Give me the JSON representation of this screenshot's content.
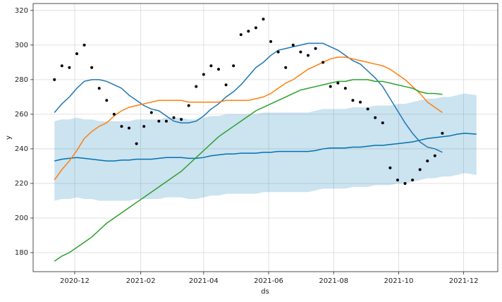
{
  "chart_data": {
    "type": "line",
    "xlabel": "ds",
    "ylabel": "y",
    "grid": true,
    "ylim": [
      169,
      324
    ],
    "yticks": [
      180,
      200,
      220,
      240,
      260,
      280,
      300,
      320
    ],
    "xlim": [
      "2020-10-23",
      "2022-01-02"
    ],
    "xticks": [
      {
        "value": "2020-12-01",
        "label": "2020-12"
      },
      {
        "value": "2021-02-01",
        "label": "2021-02"
      },
      {
        "value": "2021-04-01",
        "label": "2021-04"
      },
      {
        "value": "2021-06-01",
        "label": "2021-06"
      },
      {
        "value": "2021-08-01",
        "label": "2021-08"
      },
      {
        "value": "2021-10-01",
        "label": "2021-10"
      },
      {
        "value": "2021-12-01",
        "label": "2021-12"
      }
    ],
    "x": [
      "2020-11-12",
      "2020-11-19",
      "2020-11-26",
      "2020-12-03",
      "2020-12-10",
      "2020-12-17",
      "2020-12-24",
      "2020-12-31",
      "2021-01-07",
      "2021-01-14",
      "2021-01-21",
      "2021-01-28",
      "2021-02-04",
      "2021-02-11",
      "2021-02-18",
      "2021-02-25",
      "2021-03-04",
      "2021-03-11",
      "2021-03-18",
      "2021-03-25",
      "2021-04-01",
      "2021-04-08",
      "2021-04-15",
      "2021-04-22",
      "2021-04-29",
      "2021-05-06",
      "2021-05-13",
      "2021-05-20",
      "2021-05-27",
      "2021-06-03",
      "2021-06-10",
      "2021-06-17",
      "2021-06-24",
      "2021-07-01",
      "2021-07-08",
      "2021-07-15",
      "2021-07-22",
      "2021-07-29",
      "2021-08-05",
      "2021-08-12",
      "2021-08-19",
      "2021-08-26",
      "2021-09-02",
      "2021-09-09",
      "2021-09-16",
      "2021-09-23",
      "2021-09-30",
      "2021-10-07",
      "2021-10-14",
      "2021-10-21",
      "2021-10-28",
      "2021-11-04",
      "2021-11-11",
      "2021-11-18",
      "2021-11-25",
      "2021-12-02",
      "2021-12-13"
    ],
    "series": [
      {
        "kind": "band",
        "color": "#0072B2",
        "opacity": 0.2,
        "upper": [
          256,
          257,
          257,
          258,
          257,
          257,
          256,
          256,
          256,
          256,
          256,
          257,
          257,
          257,
          257,
          258,
          258,
          258,
          257,
          257,
          258,
          259,
          259,
          260,
          260,
          260,
          260,
          260,
          261,
          261,
          261,
          261,
          261,
          261,
          261,
          262,
          263,
          263,
          263,
          263,
          264,
          264,
          264,
          265,
          265,
          265,
          266,
          266,
          267,
          268,
          269,
          269,
          270,
          270,
          271,
          272,
          271
        ],
        "lower": [
          210,
          211,
          211,
          212,
          211,
          211,
          210,
          210,
          210,
          210,
          210,
          211,
          211,
          211,
          211,
          212,
          212,
          212,
          211,
          211,
          212,
          213,
          213,
          214,
          214,
          214,
          214,
          214,
          215,
          215,
          215,
          215,
          215,
          215,
          215,
          216,
          217,
          217,
          217,
          217,
          218,
          218,
          218,
          219,
          219,
          219,
          220,
          220,
          221,
          222,
          223,
          223,
          224,
          224,
          225,
          226,
          225
        ]
      },
      {
        "kind": "line",
        "color": "#0072B2",
        "values": [
          233,
          234,
          234.5,
          235,
          234.5,
          234,
          233.5,
          233,
          233,
          233.5,
          233.5,
          234,
          234,
          234,
          234.5,
          235,
          235,
          235,
          234.5,
          234.5,
          235,
          236,
          236.5,
          237,
          237,
          237.5,
          237.5,
          237.5,
          238,
          238,
          238.5,
          238.5,
          238.5,
          238.5,
          238.5,
          239,
          240,
          240.5,
          240.5,
          240.5,
          241,
          241,
          241.5,
          242,
          242,
          242.5,
          243,
          243.5,
          244,
          245,
          246,
          246.5,
          247,
          247.5,
          248.5,
          249,
          248.5
        ]
      },
      {
        "kind": "line",
        "color": "#1f77b4",
        "values": [
          261,
          266,
          270,
          275,
          279,
          280,
          280,
          279,
          277,
          275,
          271,
          268,
          265,
          263,
          262,
          259,
          256,
          255,
          255,
          256,
          259,
          263,
          266,
          270,
          273,
          277,
          282,
          287,
          290,
          294,
          297,
          298,
          299,
          300,
          301,
          301,
          301,
          299,
          297,
          294,
          291,
          289,
          285,
          281,
          276,
          269,
          262,
          255,
          249,
          244,
          241,
          240,
          238,
          null,
          null,
          null,
          null
        ]
      },
      {
        "kind": "line",
        "color": "#ff7f0e",
        "values": [
          222,
          228,
          233,
          239,
          246,
          250,
          253,
          255,
          259,
          262,
          264,
          265,
          266,
          267,
          268,
          268,
          268,
          268,
          267,
          267,
          267,
          267,
          267,
          268,
          268,
          268,
          268,
          269,
          270,
          272,
          275,
          278,
          280,
          283,
          286,
          288,
          290,
          292,
          293,
          293,
          292,
          291,
          290,
          289,
          288,
          286,
          283,
          280,
          276,
          272,
          267,
          264,
          261,
          null,
          null,
          null,
          null
        ]
      },
      {
        "kind": "line",
        "color": "#2ca02c",
        "values": [
          175,
          178,
          180,
          183,
          186,
          189,
          193,
          197,
          200,
          203,
          206,
          209,
          212,
          215,
          218,
          221,
          224,
          227,
          231,
          235,
          239,
          243,
          247,
          250,
          253,
          256,
          259,
          262,
          264,
          266,
          268,
          270,
          272,
          274,
          275,
          276,
          277,
          278,
          279,
          279,
          280,
          280,
          280,
          279,
          279,
          278,
          277,
          276,
          275,
          273,
          272,
          272,
          271.5,
          null,
          null,
          null,
          null
        ]
      },
      {
        "kind": "scatter",
        "color": "#000000",
        "values": [
          280,
          288,
          287,
          295,
          300,
          287,
          275,
          268,
          260,
          253,
          252,
          243,
          253,
          261,
          256,
          256,
          258,
          257,
          265,
          276,
          283,
          288,
          286,
          277,
          288,
          306,
          308,
          310,
          315,
          302,
          296,
          287,
          300,
          296,
          294,
          298,
          290,
          276,
          278,
          275,
          268,
          267,
          263,
          258,
          255,
          229,
          222,
          220,
          222,
          228,
          233,
          236,
          249,
          null,
          null,
          null,
          null
        ]
      }
    ]
  }
}
